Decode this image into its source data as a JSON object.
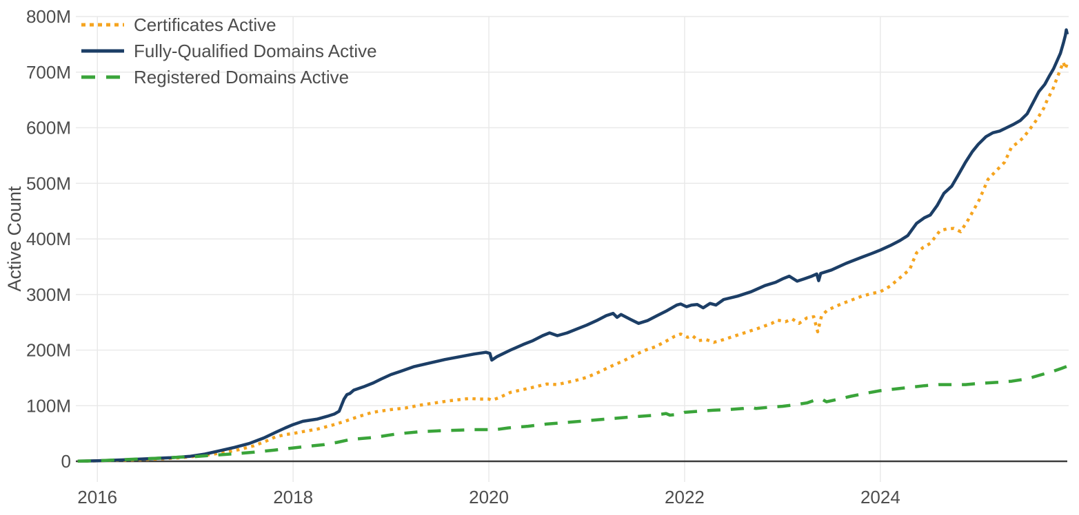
{
  "chart_data": {
    "type": "line",
    "title": "",
    "xlabel": "",
    "ylabel": "Active Count",
    "unit": "millions",
    "grid": true,
    "legend_position": "top-left",
    "x_domain": [
      2015.78,
      2025.91
    ],
    "y_domain": [
      0,
      800
    ],
    "x_ticks": [
      {
        "v": 2016,
        "label": "2016"
      },
      {
        "v": 2018,
        "label": "2018"
      },
      {
        "v": 2020,
        "label": "2020"
      },
      {
        "v": 2022,
        "label": "2022"
      },
      {
        "v": 2024,
        "label": "2024"
      }
    ],
    "y_ticks": [
      {
        "v": 0,
        "label": "0"
      },
      {
        "v": 100,
        "label": "100M"
      },
      {
        "v": 200,
        "label": "200M"
      },
      {
        "v": 300,
        "label": "300M"
      },
      {
        "v": 400,
        "label": "400M"
      },
      {
        "v": 500,
        "label": "500M"
      },
      {
        "v": 600,
        "label": "600M"
      },
      {
        "v": 700,
        "label": "700M"
      },
      {
        "v": 800,
        "label": "800M"
      }
    ],
    "colors": {
      "grid": "#e9e9e9",
      "zero_axis": "#3b3b3b",
      "tick_text": "#4d4d4d"
    },
    "series": [
      {
        "name": "Certificates Active",
        "color": "#f5a41f",
        "dash": "dot",
        "points": [
          [
            2015.8,
            0.2
          ],
          [
            2016,
            0.8
          ],
          [
            2016.3,
            2
          ],
          [
            2016.6,
            4
          ],
          [
            2016.85,
            6.5
          ],
          [
            2017,
            9
          ],
          [
            2017.15,
            12
          ],
          [
            2017.3,
            16
          ],
          [
            2017.45,
            21
          ],
          [
            2017.6,
            28
          ],
          [
            2017.72,
            36
          ],
          [
            2017.82,
            44
          ],
          [
            2017.92,
            48
          ],
          [
            2018,
            50
          ],
          [
            2018.12,
            54
          ],
          [
            2018.25,
            58
          ],
          [
            2018.4,
            65
          ],
          [
            2018.53,
            72
          ],
          [
            2018.66,
            80
          ],
          [
            2018.81,
            88
          ],
          [
            2019,
            93
          ],
          [
            2019.15,
            96
          ],
          [
            2019.3,
            101
          ],
          [
            2019.45,
            105
          ],
          [
            2019.6,
            109
          ],
          [
            2019.8,
            113
          ],
          [
            2019.9,
            112
          ],
          [
            2020,
            112
          ],
          [
            2020.03,
            110
          ],
          [
            2020.1,
            114
          ],
          [
            2020.22,
            124
          ],
          [
            2020.35,
            129
          ],
          [
            2020.45,
            133
          ],
          [
            2020.59,
            139
          ],
          [
            2020.7,
            138
          ],
          [
            2020.8,
            142
          ],
          [
            2020.9,
            146
          ],
          [
            2021,
            151
          ],
          [
            2021.12,
            160
          ],
          [
            2021.25,
            171
          ],
          [
            2021.38,
            181
          ],
          [
            2021.5,
            192
          ],
          [
            2021.6,
            200
          ],
          [
            2021.7,
            206
          ],
          [
            2021.8,
            215
          ],
          [
            2021.9,
            225
          ],
          [
            2021.96,
            229
          ],
          [
            2022.03,
            223
          ],
          [
            2022.08,
            226
          ],
          [
            2022.14,
            217
          ],
          [
            2022.22,
            219
          ],
          [
            2022.3,
            214
          ],
          [
            2022.4,
            219
          ],
          [
            2022.47,
            223
          ],
          [
            2022.61,
            231
          ],
          [
            2022.75,
            239
          ],
          [
            2022.89,
            248
          ],
          [
            2022.95,
            254
          ],
          [
            2023.03,
            251
          ],
          [
            2023.1,
            256
          ],
          [
            2023.17,
            248
          ],
          [
            2023.25,
            258
          ],
          [
            2023.32,
            260
          ],
          [
            2023.36,
            233
          ],
          [
            2023.4,
            262
          ],
          [
            2023.46,
            272
          ],
          [
            2023.6,
            283
          ],
          [
            2023.81,
            297
          ],
          [
            2023.92,
            302
          ],
          [
            2024,
            305
          ],
          [
            2024.1,
            315
          ],
          [
            2024.2,
            330
          ],
          [
            2024.3,
            345
          ],
          [
            2024.33,
            358
          ],
          [
            2024.37,
            375
          ],
          [
            2024.44,
            385
          ],
          [
            2024.51,
            392
          ],
          [
            2024.61,
            415
          ],
          [
            2024.68,
            418
          ],
          [
            2024.75,
            419
          ],
          [
            2024.82,
            413
          ],
          [
            2024.9,
            435
          ],
          [
            2025.01,
            470
          ],
          [
            2025.1,
            507
          ],
          [
            2025.18,
            522
          ],
          [
            2025.27,
            538
          ],
          [
            2025.34,
            565
          ],
          [
            2025.41,
            574
          ],
          [
            2025.46,
            582
          ],
          [
            2025.53,
            598
          ],
          [
            2025.6,
            615
          ],
          [
            2025.67,
            635
          ],
          [
            2025.71,
            652
          ],
          [
            2025.76,
            668
          ],
          [
            2025.8,
            687
          ],
          [
            2025.84,
            705
          ],
          [
            2025.87,
            718
          ],
          [
            2025.89,
            706
          ],
          [
            2025.91,
            716
          ]
        ]
      },
      {
        "name": "Fully-Qualified Domains Active",
        "color": "#1c3e66",
        "dash": "solid",
        "points": [
          [
            2015.8,
            0.3
          ],
          [
            2016,
            1
          ],
          [
            2016.25,
            2.5
          ],
          [
            2016.5,
            4.5
          ],
          [
            2016.75,
            6.5
          ],
          [
            2016.95,
            9
          ],
          [
            2017.1,
            13
          ],
          [
            2017.25,
            19
          ],
          [
            2017.4,
            25
          ],
          [
            2017.55,
            32
          ],
          [
            2017.7,
            42
          ],
          [
            2017.82,
            52
          ],
          [
            2017.92,
            60
          ],
          [
            2018,
            66
          ],
          [
            2018.1,
            72
          ],
          [
            2018.25,
            76
          ],
          [
            2018.35,
            81
          ],
          [
            2018.42,
            85
          ],
          [
            2018.47,
            90
          ],
          [
            2018.5,
            103
          ],
          [
            2018.52,
            112
          ],
          [
            2018.55,
            120
          ],
          [
            2018.58,
            122
          ],
          [
            2018.62,
            128
          ],
          [
            2018.72,
            134
          ],
          [
            2018.82,
            141
          ],
          [
            2018.9,
            148
          ],
          [
            2019,
            156
          ],
          [
            2019.1,
            162
          ],
          [
            2019.23,
            170
          ],
          [
            2019.4,
            177
          ],
          [
            2019.55,
            183
          ],
          [
            2019.7,
            188
          ],
          [
            2019.85,
            193
          ],
          [
            2019.97,
            196
          ],
          [
            2020.01,
            194
          ],
          [
            2020.03,
            182
          ],
          [
            2020.08,
            188
          ],
          [
            2020.22,
            200
          ],
          [
            2020.35,
            210
          ],
          [
            2020.45,
            217
          ],
          [
            2020.55,
            226
          ],
          [
            2020.62,
            231
          ],
          [
            2020.7,
            226
          ],
          [
            2020.8,
            231
          ],
          [
            2020.9,
            238
          ],
          [
            2021,
            245
          ],
          [
            2021.1,
            253
          ],
          [
            2021.2,
            262
          ],
          [
            2021.27,
            266
          ],
          [
            2021.31,
            259
          ],
          [
            2021.35,
            264
          ],
          [
            2021.45,
            255
          ],
          [
            2021.53,
            248
          ],
          [
            2021.62,
            253
          ],
          [
            2021.72,
            262
          ],
          [
            2021.82,
            271
          ],
          [
            2021.92,
            281
          ],
          [
            2021.96,
            283
          ],
          [
            2022.02,
            278
          ],
          [
            2022.07,
            281
          ],
          [
            2022.13,
            282
          ],
          [
            2022.19,
            276
          ],
          [
            2022.26,
            284
          ],
          [
            2022.32,
            281
          ],
          [
            2022.4,
            291
          ],
          [
            2022.54,
            297
          ],
          [
            2022.68,
            305
          ],
          [
            2022.82,
            316
          ],
          [
            2022.93,
            322
          ],
          [
            2023,
            328
          ],
          [
            2023.07,
            333
          ],
          [
            2023.15,
            324
          ],
          [
            2023.22,
            328
          ],
          [
            2023.3,
            333
          ],
          [
            2023.35,
            337
          ],
          [
            2023.37,
            325
          ],
          [
            2023.39,
            338
          ],
          [
            2023.5,
            344
          ],
          [
            2023.65,
            356
          ],
          [
            2023.81,
            367
          ],
          [
            2023.9,
            373
          ],
          [
            2024,
            380
          ],
          [
            2024.1,
            388
          ],
          [
            2024.2,
            397
          ],
          [
            2024.28,
            406
          ],
          [
            2024.37,
            428
          ],
          [
            2024.45,
            438
          ],
          [
            2024.51,
            443
          ],
          [
            2024.58,
            460
          ],
          [
            2024.65,
            482
          ],
          [
            2024.73,
            495
          ],
          [
            2024.8,
            516
          ],
          [
            2024.87,
            538
          ],
          [
            2024.94,
            557
          ],
          [
            2025,
            570
          ],
          [
            2025.08,
            584
          ],
          [
            2025.15,
            591
          ],
          [
            2025.22,
            594
          ],
          [
            2025.29,
            600
          ],
          [
            2025.36,
            606
          ],
          [
            2025.43,
            613
          ],
          [
            2025.5,
            625
          ],
          [
            2025.56,
            645
          ],
          [
            2025.62,
            665
          ],
          [
            2025.68,
            678
          ],
          [
            2025.73,
            694
          ],
          [
            2025.77,
            706
          ],
          [
            2025.81,
            722
          ],
          [
            2025.84,
            734
          ],
          [
            2025.87,
            752
          ],
          [
            2025.89,
            766
          ],
          [
            2025.9,
            776
          ],
          [
            2025.91,
            768
          ]
        ]
      },
      {
        "name": "Registered Domains Active",
        "color": "#3aa43a",
        "dash": "dash",
        "points": [
          [
            2015.8,
            0.2
          ],
          [
            2016,
            1
          ],
          [
            2016.2,
            2.5
          ],
          [
            2016.4,
            4
          ],
          [
            2016.6,
            5.5
          ],
          [
            2016.8,
            7
          ],
          [
            2017,
            8.5
          ],
          [
            2017.2,
            11
          ],
          [
            2017.4,
            13.5
          ],
          [
            2017.6,
            16.5
          ],
          [
            2017.8,
            20
          ],
          [
            2018,
            24
          ],
          [
            2018.15,
            27
          ],
          [
            2018.32,
            30
          ],
          [
            2018.45,
            34
          ],
          [
            2018.58,
            39
          ],
          [
            2018.7,
            41
          ],
          [
            2018.83,
            43
          ],
          [
            2019.05,
            49
          ],
          [
            2019.28,
            53
          ],
          [
            2019.5,
            55
          ],
          [
            2019.7,
            56
          ],
          [
            2019.85,
            57
          ],
          [
            2020,
            57
          ],
          [
            2020.03,
            56
          ],
          [
            2020.2,
            60
          ],
          [
            2020.4,
            63
          ],
          [
            2020.59,
            67
          ],
          [
            2020.8,
            70
          ],
          [
            2021,
            73
          ],
          [
            2021.2,
            76
          ],
          [
            2021.4,
            79
          ],
          [
            2021.55,
            81
          ],
          [
            2021.7,
            83
          ],
          [
            2021.81,
            86
          ],
          [
            2021.85,
            83
          ],
          [
            2021.95,
            85
          ],
          [
            2022,
            88
          ],
          [
            2022.15,
            90
          ],
          [
            2022.3,
            92
          ],
          [
            2022.45,
            93
          ],
          [
            2022.6,
            95
          ],
          [
            2022.68,
            97
          ],
          [
            2022.73,
            95
          ],
          [
            2022.85,
            97
          ],
          [
            2023,
            99
          ],
          [
            2023.1,
            101
          ],
          [
            2023.25,
            105
          ],
          [
            2023.33,
            110
          ],
          [
            2023.4,
            112
          ],
          [
            2023.45,
            107
          ],
          [
            2023.55,
            111
          ],
          [
            2023.7,
            117
          ],
          [
            2023.81,
            121
          ],
          [
            2023.9,
            124
          ],
          [
            2024,
            127
          ],
          [
            2024.15,
            130
          ],
          [
            2024.3,
            133
          ],
          [
            2024.45,
            136
          ],
          [
            2024.6,
            138
          ],
          [
            2024.75,
            138
          ],
          [
            2024.87,
            138
          ],
          [
            2025,
            140
          ],
          [
            2025.1,
            141
          ],
          [
            2025.2,
            142
          ],
          [
            2025.34,
            144
          ],
          [
            2025.45,
            147
          ],
          [
            2025.55,
            151
          ],
          [
            2025.65,
            156
          ],
          [
            2025.75,
            161
          ],
          [
            2025.85,
            167
          ],
          [
            2025.91,
            171
          ]
        ]
      }
    ]
  }
}
